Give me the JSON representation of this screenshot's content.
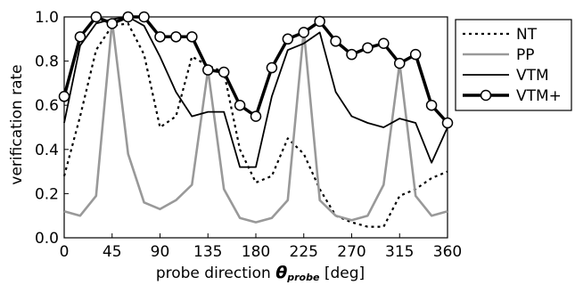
{
  "chart_data": {
    "type": "line",
    "xlabel": {
      "prefix": "probe direction ",
      "theta": "θ",
      "sub": "probe",
      "suffix": " [deg]"
    },
    "ylabel": "verification rate",
    "xlim": [
      0,
      360
    ],
    "ylim": [
      0,
      1.0
    ],
    "xticks": [
      0,
      45,
      90,
      135,
      180,
      225,
      270,
      315,
      360
    ],
    "yticks": [
      "0.0",
      "0.2",
      "0.4",
      "0.6",
      "0.8",
      "1.0"
    ],
    "grid": false,
    "legend_position": "right",
    "series": [
      {
        "name": "NT",
        "style": "dotted",
        "color": "#000000",
        "x": [
          0,
          15,
          30,
          45,
          60,
          75,
          90,
          105,
          120,
          135,
          150,
          165,
          180,
          195,
          210,
          225,
          240,
          255,
          270,
          285,
          300,
          315,
          330,
          345,
          360
        ],
        "y": [
          0.28,
          0.55,
          0.85,
          0.96,
          0.97,
          0.83,
          0.5,
          0.55,
          0.82,
          0.78,
          0.75,
          0.4,
          0.25,
          0.28,
          0.45,
          0.38,
          0.22,
          0.1,
          0.07,
          0.05,
          0.05,
          0.19,
          0.22,
          0.27,
          0.3
        ]
      },
      {
        "name": "PP",
        "style": "solid",
        "color": "#999999",
        "x": [
          0,
          15,
          30,
          45,
          60,
          75,
          90,
          105,
          120,
          135,
          150,
          165,
          180,
          195,
          210,
          225,
          240,
          255,
          270,
          285,
          300,
          315,
          330,
          345,
          360
        ],
        "y": [
          0.12,
          0.1,
          0.19,
          0.98,
          0.38,
          0.16,
          0.13,
          0.17,
          0.24,
          0.76,
          0.22,
          0.09,
          0.07,
          0.09,
          0.17,
          0.94,
          0.17,
          0.1,
          0.08,
          0.1,
          0.24,
          0.79,
          0.19,
          0.1,
          0.12
        ]
      },
      {
        "name": "VTM",
        "style": "solid",
        "color": "#000000",
        "x": [
          0,
          15,
          30,
          45,
          60,
          75,
          90,
          105,
          120,
          135,
          150,
          165,
          180,
          195,
          210,
          225,
          240,
          255,
          270,
          285,
          300,
          315,
          330,
          345,
          360
        ],
        "y": [
          0.52,
          0.87,
          0.97,
          0.99,
          1.0,
          0.96,
          0.82,
          0.66,
          0.55,
          0.57,
          0.57,
          0.32,
          0.32,
          0.64,
          0.85,
          0.88,
          0.93,
          0.66,
          0.55,
          0.52,
          0.5,
          0.54,
          0.52,
          0.34,
          0.5
        ]
      },
      {
        "name": "VTM+",
        "style": "solid-thick-markers",
        "color": "#000000",
        "x": [
          0,
          15,
          30,
          45,
          60,
          75,
          90,
          105,
          120,
          135,
          150,
          165,
          180,
          195,
          210,
          225,
          240,
          255,
          270,
          285,
          300,
          315,
          330,
          345,
          360
        ],
        "y": [
          0.64,
          0.91,
          1.0,
          0.97,
          1.0,
          1.0,
          0.91,
          0.91,
          0.91,
          0.76,
          0.75,
          0.6,
          0.55,
          0.77,
          0.9,
          0.93,
          0.98,
          0.89,
          0.83,
          0.86,
          0.88,
          0.79,
          0.83,
          0.6,
          0.52
        ]
      }
    ]
  }
}
